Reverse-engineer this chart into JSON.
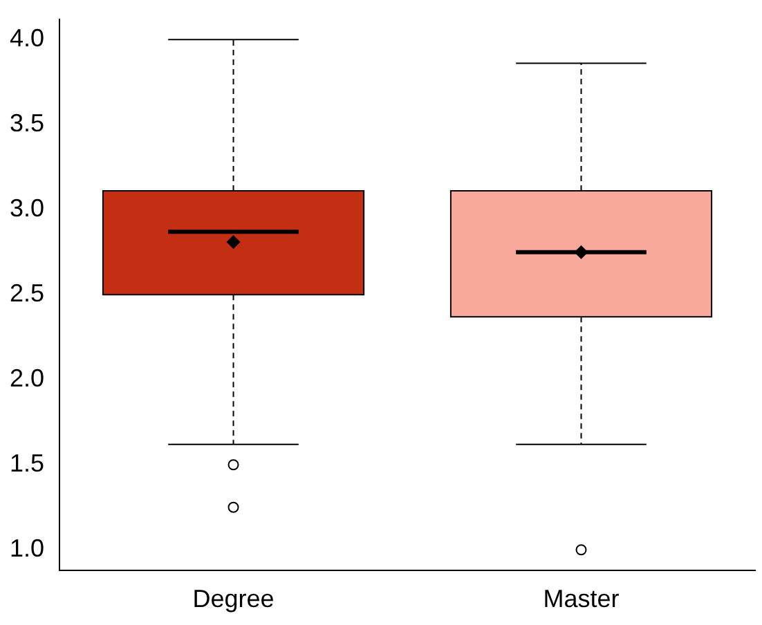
{
  "chart_data": {
    "type": "box",
    "categories": [
      "Degree",
      "Master"
    ],
    "colors": [
      "#c42e12",
      "#f9a99b"
    ],
    "boxes": [
      {
        "low": 1.62,
        "q1": 2.5,
        "median": 2.87,
        "q3": 3.11,
        "high": 4.0,
        "mean": 2.81,
        "outliers": [
          1.5,
          1.25
        ]
      },
      {
        "low": 1.62,
        "q1": 2.37,
        "median": 2.75,
        "q3": 3.11,
        "high": 3.86,
        "mean": 2.75,
        "outliers": [
          1.0
        ]
      }
    ],
    "ylim": [
      0.88,
      4.12
    ],
    "yticks": [
      {
        "value": 1,
        "label": "1.0"
      },
      {
        "value": 1.5,
        "label": "1.5"
      },
      {
        "value": 2,
        "label": "2.0"
      },
      {
        "value": 2.5,
        "label": "2.5"
      },
      {
        "value": 3,
        "label": "3.0"
      },
      {
        "value": 3.5,
        "label": "3.5"
      },
      {
        "value": 4,
        "label": "4.0"
      }
    ],
    "grid": false,
    "legend": false
  }
}
